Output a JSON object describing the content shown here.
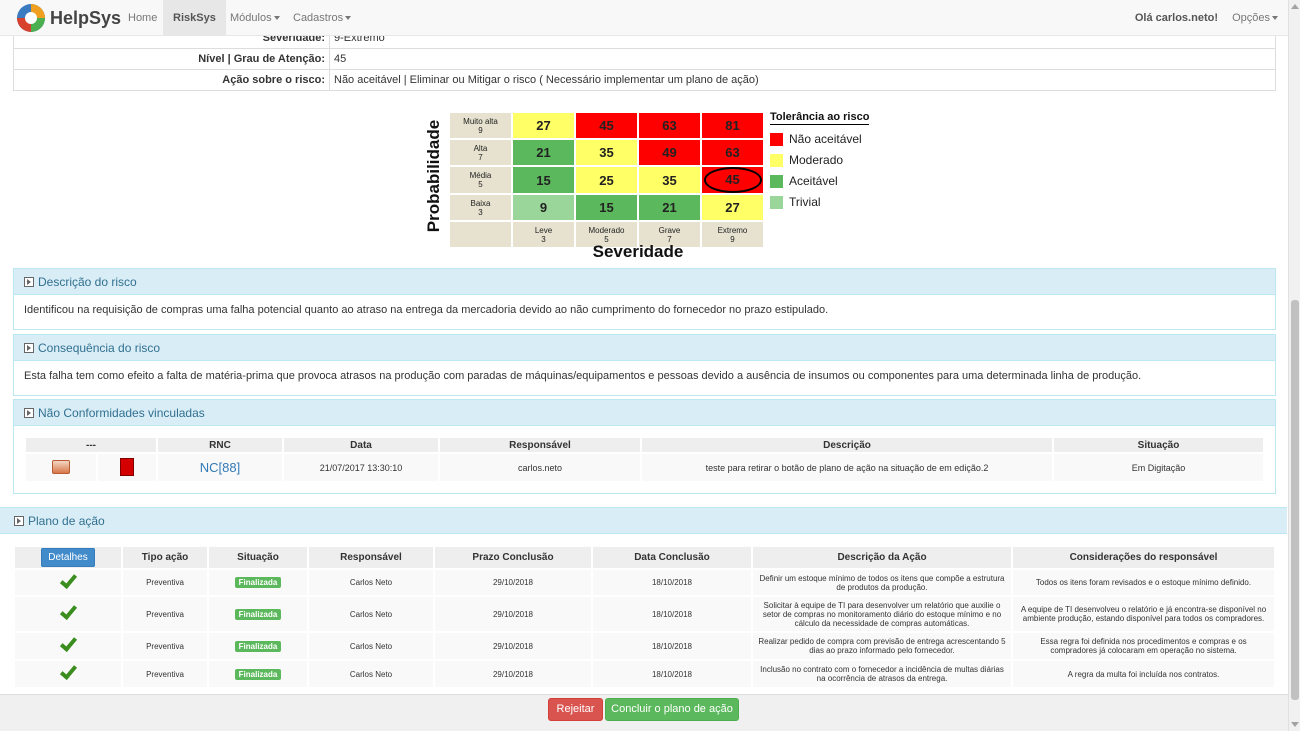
{
  "nav": {
    "brand": "HelpSys",
    "items": [
      "Home",
      "RiskSys",
      "Módulos",
      "Cadastros"
    ],
    "greeting": "Olá carlos.neto!",
    "options": "Opções"
  },
  "info": {
    "rows": [
      {
        "label": "Severidade:",
        "value": "9-Extremo"
      },
      {
        "label": "Nível | Grau de Atenção:",
        "value": "45"
      },
      {
        "label": "Ação sobre o risco:",
        "value": "Não aceitável | Eliminar ou Mitigar o risco ( Necessário implementar um plano de ação)"
      }
    ]
  },
  "matrix": {
    "y_label": "Probabilidade",
    "x_label": "Severidade",
    "rows": [
      {
        "label": "Muito alta",
        "num": "9",
        "cells": [
          "27",
          "45",
          "63",
          "81"
        ]
      },
      {
        "label": "Alta",
        "num": "7",
        "cells": [
          "21",
          "35",
          "49",
          "63"
        ]
      },
      {
        "label": "Média",
        "num": "5",
        "cells": [
          "15",
          "25",
          "35",
          "45"
        ]
      },
      {
        "label": "Baixa",
        "num": "3",
        "cells": [
          "9",
          "15",
          "21",
          "27"
        ]
      }
    ],
    "cols": [
      {
        "label": "Leve",
        "num": "3"
      },
      {
        "label": "Moderado",
        "num": "5"
      },
      {
        "label": "Grave",
        "num": "7"
      },
      {
        "label": "Extremo",
        "num": "9"
      }
    ],
    "legend_title": "Tolerância ao risco",
    "legend": [
      {
        "label": "Não aceitável",
        "color": "#ff0000"
      },
      {
        "label": "Moderado",
        "color": "#ffff66"
      },
      {
        "label": "Aceitável",
        "color": "#5cb85c"
      },
      {
        "label": "Trivial",
        "color": "#9ad59a"
      }
    ]
  },
  "descricao": {
    "title": "Descrição do risco",
    "text": "Identificou na requisição de compras uma falha potencial quanto ao atraso na entrega da mercadoria devido ao não cumprimento do fornecedor no prazo estipulado."
  },
  "consequencia": {
    "title": "Consequência do risco",
    "text": "Esta falha tem como efeito a falta de matéria-prima que provoca atrasos na produção com paradas de máquinas/equipamentos e pessoas devido a ausência de insumos ou componentes para uma determinada linha de produção."
  },
  "nc": {
    "title": "Não Conformidades vinculadas",
    "headers": [
      "---",
      "RNC",
      "Data",
      "Responsável",
      "Descrição",
      "Situação"
    ],
    "row": {
      "rnc": "NC[88]",
      "data": "21/07/2017 13:30:10",
      "responsavel": "carlos.neto",
      "descricao": "teste para retirar o botão de plano de ação na situação de em edição.2",
      "situacao": "Em Digitação"
    }
  },
  "plano": {
    "title": "Plano de ação",
    "detalhes": "Detalhes",
    "headers": [
      "Tipo ação",
      "Situação",
      "Responsável",
      "Prazo Conclusão",
      "Data Conclusão",
      "Descrição da Ação",
      "Considerações do responsável"
    ],
    "rows": [
      {
        "tipo": "Preventiva",
        "situacao": "Finalizada",
        "responsavel": "Carlos Neto",
        "prazo": "29/10/2018",
        "data": "18/10/2018",
        "descricao": "Definir um estoque mínimo de todos os itens que compõe a estrutura de produtos da produção.",
        "consideracoes": "Todos os itens foram revisados e o estoque mínimo definido."
      },
      {
        "tipo": "Preventiva",
        "situacao": "Finalizada",
        "responsavel": "Carlos Neto",
        "prazo": "29/10/2018",
        "data": "18/10/2018",
        "descricao": "Solicitar à equipe de TI para desenvolver um relatório que auxilie o setor de compras no monitoramento diário do estoque mínimo e no cálculo da necessidade de compras automáticas.",
        "consideracoes": "A equipe de TI desenvolveu o relatório e já encontra-se disponível no ambiente produção, estando disponível para todos os compradores."
      },
      {
        "tipo": "Preventiva",
        "situacao": "Finalizada",
        "responsavel": "Carlos Neto",
        "prazo": "29/10/2018",
        "data": "18/10/2018",
        "descricao": "Realizar pedido de compra com previsão de entrega acrescentando 5 dias ao prazo informado pelo fornecedor.",
        "consideracoes": "Essa regra foi definida nos procedimentos e compras e os compradores já colocaram em operação no sistema."
      },
      {
        "tipo": "Preventiva",
        "situacao": "Finalizada",
        "responsavel": "Carlos Neto",
        "prazo": "29/10/2018",
        "data": "18/10/2018",
        "descricao": "Inclusão no contrato com o fornecedor a incidência de multas diárias na ocorrência de atrasos da entrega.",
        "consideracoes": "A regra da multa foi incluída nos contratos."
      }
    ]
  },
  "buttons": {
    "reject": "Rejeitar",
    "conclude": "Concluir o plano de ação"
  }
}
